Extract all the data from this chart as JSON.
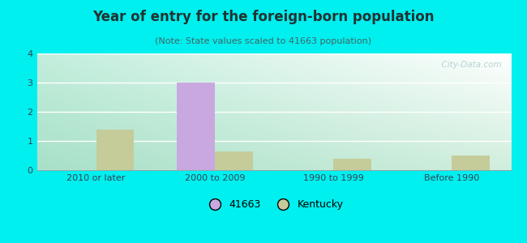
{
  "title": "Year of entry for the foreign-born population",
  "subtitle": "(Note: State values scaled to 41663 population)",
  "categories": [
    "2010 or later",
    "2000 to 2009",
    "1990 to 1999",
    "Before 1990"
  ],
  "values_41663": [
    0,
    3.0,
    0,
    0
  ],
  "values_kentucky": [
    1.4,
    0.65,
    0.4,
    0.5
  ],
  "bar_color_41663": "#c9a8e0",
  "bar_color_kentucky": "#c5cc99",
  "background_color": "#00efef",
  "plot_bg_topleft": "#b8eedc",
  "plot_bg_topright": "#e8f4f0",
  "plot_bg_bottomleft": "#c8eed8",
  "plot_bg_bottomright": "#f0f8f0",
  "ylim": [
    0,
    4
  ],
  "yticks": [
    0,
    1,
    2,
    3,
    4
  ],
  "bar_width": 0.32,
  "legend_label_1": "41663",
  "legend_label_2": "Kentucky",
  "watermark": "  City-Data.com",
  "title_fontsize": 12,
  "subtitle_fontsize": 8,
  "tick_fontsize": 8
}
